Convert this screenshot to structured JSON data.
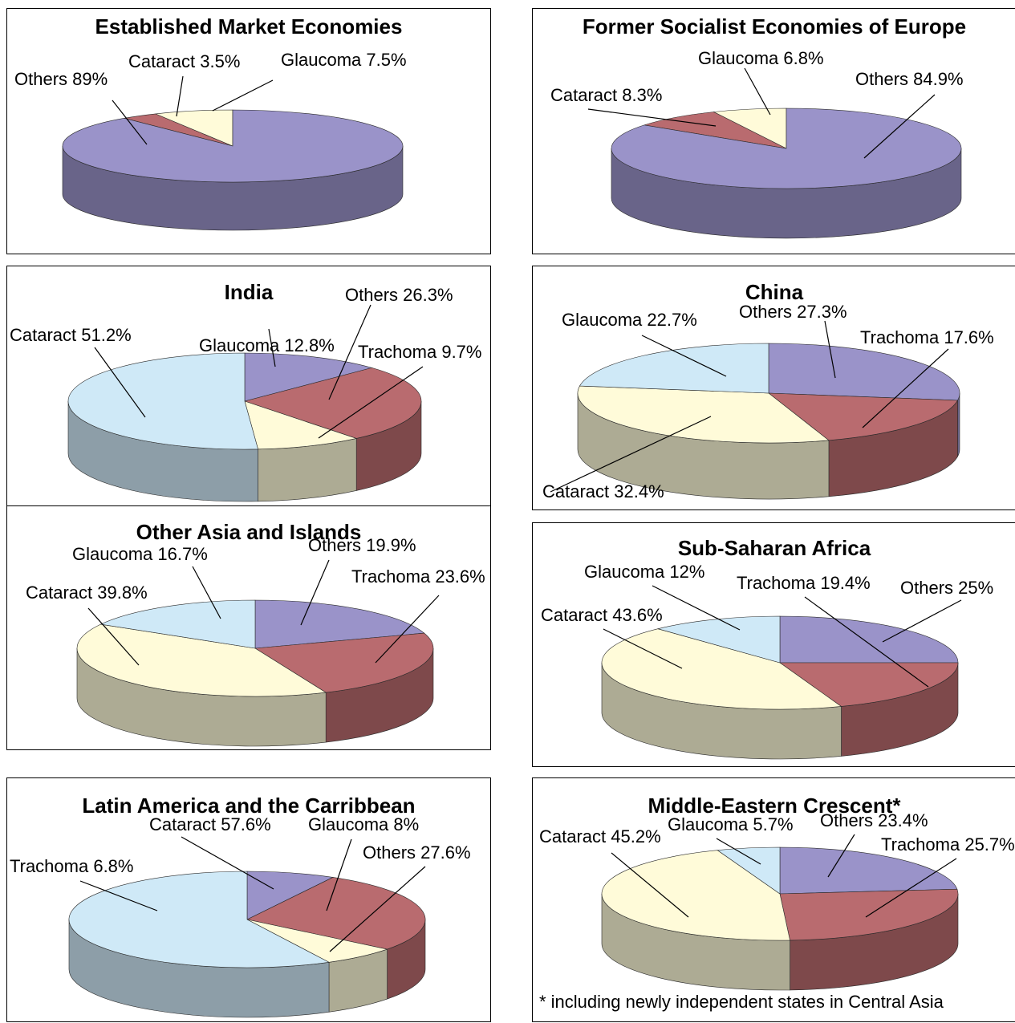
{
  "colors": {
    "Others": "#9a93c9",
    "Cataract": "#cfe9f7",
    "Glaucoma": "#cfe9f7",
    "Trachoma": "#b96b6f",
    "Cataract_alt": "#fffbd9",
    "Glaucoma_alt": "#fffbd9"
  },
  "chart_data": [
    {
      "type": "pie",
      "title": "Established Market Economies",
      "slices": [
        {
          "name": "Others",
          "value": 89,
          "label": "Others 89%",
          "color": "#9a93c9"
        },
        {
          "name": "Cataract",
          "value": 3.5,
          "label": "Cataract 3.5%",
          "color": "#b96b6f"
        },
        {
          "name": "Glaucoma",
          "value": 7.5,
          "label": "Glaucoma 7.5%",
          "color": "#fffbd9"
        }
      ]
    },
    {
      "type": "pie",
      "title": "Former Socialist Economies of Europe",
      "slices": [
        {
          "name": "Others",
          "value": 84.9,
          "label": "Others 84.9%",
          "color": "#9a93c9"
        },
        {
          "name": "Cataract",
          "value": 8.3,
          "label": "Cataract 8.3%",
          "color": "#b96b6f"
        },
        {
          "name": "Glaucoma",
          "value": 6.8,
          "label": "Glaucoma 6.8%",
          "color": "#fffbd9"
        }
      ]
    },
    {
      "type": "pie",
      "title": "India",
      "slices": [
        {
          "name": "Glaucoma",
          "value": 12.8,
          "label": "Glaucoma 12.8%",
          "color": "#9a93c9"
        },
        {
          "name": "Others",
          "value": 26.3,
          "label": "Others 26.3%",
          "color": "#b96b6f"
        },
        {
          "name": "Trachoma",
          "value": 9.7,
          "label": "Trachoma 9.7%",
          "color": "#fffbd9"
        },
        {
          "name": "Cataract",
          "value": 51.2,
          "label": "Cataract 51.2%",
          "color": "#cfe9f7"
        }
      ]
    },
    {
      "type": "pie",
      "title": "China",
      "slices": [
        {
          "name": "Others",
          "value": 27.3,
          "label": "Others 27.3%",
          "color": "#9a93c9"
        },
        {
          "name": "Trachoma",
          "value": 17.6,
          "label": "Trachoma 17.6%",
          "color": "#b96b6f"
        },
        {
          "name": "Cataract",
          "value": 32.4,
          "label": "Cataract 32.4%",
          "color": "#fffbd9"
        },
        {
          "name": "Glaucoma",
          "value": 22.7,
          "label": "Glaucoma 22.7%",
          "color": "#cfe9f7"
        }
      ]
    },
    {
      "type": "pie",
      "title": "Other Asia and Islands",
      "slices": [
        {
          "name": "Others",
          "value": 19.9,
          "label": "Others 19.9%",
          "color": "#9a93c9"
        },
        {
          "name": "Trachoma",
          "value": 23.6,
          "label": "Trachoma 23.6%",
          "color": "#b96b6f"
        },
        {
          "name": "Cataract",
          "value": 39.8,
          "label": "Cataract 39.8%",
          "color": "#fffbd9"
        },
        {
          "name": "Glaucoma",
          "value": 16.7,
          "label": "Glaucoma 16.7%",
          "color": "#cfe9f7"
        }
      ]
    },
    {
      "type": "pie",
      "title": "Sub-Saharan Africa",
      "slices": [
        {
          "name": "Others",
          "value": 25,
          "label": "Others 25%",
          "color": "#9a93c9"
        },
        {
          "name": "Trachoma",
          "value": 19.4,
          "label": "Trachoma 19.4%",
          "color": "#b96b6f"
        },
        {
          "name": "Cataract",
          "value": 43.6,
          "label": "Cataract 43.6%",
          "color": "#fffbd9"
        },
        {
          "name": "Glaucoma",
          "value": 12,
          "label": "Glaucoma 12%",
          "color": "#cfe9f7"
        }
      ]
    },
    {
      "type": "pie",
      "title": "Latin America and the Carribbean",
      "slices": [
        {
          "name": "Glaucoma",
          "value": 8,
          "label": "Glaucoma 8%",
          "color": "#9a93c9"
        },
        {
          "name": "Others",
          "value": 27.6,
          "label": "Others 27.6%",
          "color": "#b96b6f"
        },
        {
          "name": "Trachoma",
          "value": 6.8,
          "label": "Trachoma 6.8%",
          "color": "#fffbd9"
        },
        {
          "name": "Cataract",
          "value": 57.6,
          "label": "Cataract 57.6%",
          "color": "#cfe9f7"
        }
      ]
    },
    {
      "type": "pie",
      "title": "Middle-Eastern Crescent*",
      "slices": [
        {
          "name": "Others",
          "value": 23.4,
          "label": "Others 23.4%",
          "color": "#9a93c9"
        },
        {
          "name": "Trachoma",
          "value": 25.7,
          "label": "Trachoma 25.7%",
          "color": "#b96b6f"
        },
        {
          "name": "Cataract",
          "value": 45.2,
          "label": "Cataract 45.2%",
          "color": "#fffbd9"
        },
        {
          "name": "Glaucoma",
          "value": 5.7,
          "label": "Glaucoma 5.7%",
          "color": "#cfe9f7"
        }
      ]
    }
  ],
  "footnote": "* including newly independent states in Central Asia"
}
